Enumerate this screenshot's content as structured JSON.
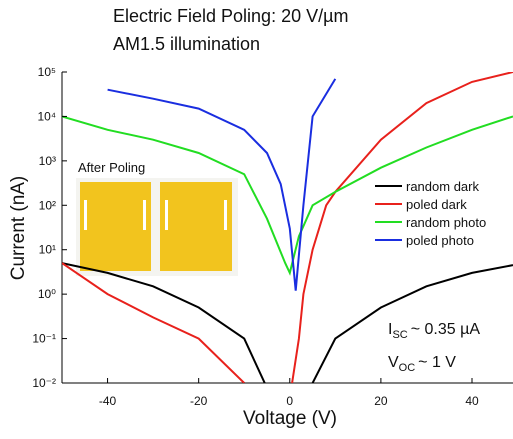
{
  "chart_data": {
    "type": "line",
    "title": "Electric Field Poling: 20 V/µm",
    "subtitle": "AM1.5 illumination",
    "x_label": "Voltage (V)",
    "y_label": "Current (nA)",
    "log_y": true,
    "xlim": [
      -50,
      49
    ],
    "ylim": [
      0.01,
      100000
    ],
    "xticks": [
      -40,
      -20,
      0,
      20,
      40
    ],
    "yticks": [
      {
        "value": 0.01,
        "label": "10⁻²"
      },
      {
        "value": 0.1,
        "label": "10⁻¹"
      },
      {
        "value": 1,
        "label": "10⁰"
      },
      {
        "value": 10,
        "label": "10¹"
      },
      {
        "value": 100,
        "label": "10²"
      },
      {
        "value": 1000,
        "label": "10³"
      },
      {
        "value": 10000,
        "label": "10⁴"
      },
      {
        "value": 100000,
        "label": "10⁵"
      }
    ],
    "inset_label": "After Poling",
    "annotations": [
      {
        "main": "I",
        "sub": "SC",
        "rest": "~ 0.35 µA"
      },
      {
        "main": "V",
        "sub": "OC",
        "rest": "~ 1 V"
      }
    ],
    "series": [
      {
        "name": "random dark",
        "color": "#000000",
        "x": [
          -50,
          -40,
          -30,
          -20,
          -10,
          -5.5,
          null,
          5,
          10,
          20,
          30,
          40,
          49
        ],
        "values": [
          5,
          3,
          1.5,
          0.5,
          0.1,
          0.01,
          null,
          0.01,
          0.1,
          0.5,
          1.5,
          3,
          4.5
        ]
      },
      {
        "name": "poled dark",
        "color": "#e8211c",
        "x": [
          -50,
          -40,
          -30,
          -20,
          -10,
          null,
          0.5,
          2,
          3,
          5,
          8,
          10,
          20,
          30,
          40,
          49
        ],
        "values": [
          5,
          1,
          0.3,
          0.1,
          0.01,
          null,
          0.01,
          0.1,
          1,
          10,
          100,
          200,
          3000,
          20000,
          60000,
          100000
        ]
      },
      {
        "name": "random photo",
        "color": "#22dd22",
        "x": [
          -50,
          -40,
          -30,
          -20,
          -10,
          -5,
          -1,
          0,
          2,
          5,
          10,
          20,
          30,
          40,
          49
        ],
        "values": [
          10000,
          5000,
          3000,
          1500,
          500,
          50,
          5,
          3,
          20,
          100,
          200,
          700,
          2000,
          5000,
          10000
        ]
      },
      {
        "name": "poled photo",
        "color": "#1a2ee0",
        "x": [
          -40,
          -30,
          -20,
          -10,
          -5,
          -2,
          0,
          1.3,
          3,
          5,
          10
        ],
        "values": [
          40000,
          25000,
          15000,
          5000,
          1500,
          300,
          30,
          1.2,
          100,
          10000,
          70000
        ]
      }
    ]
  }
}
